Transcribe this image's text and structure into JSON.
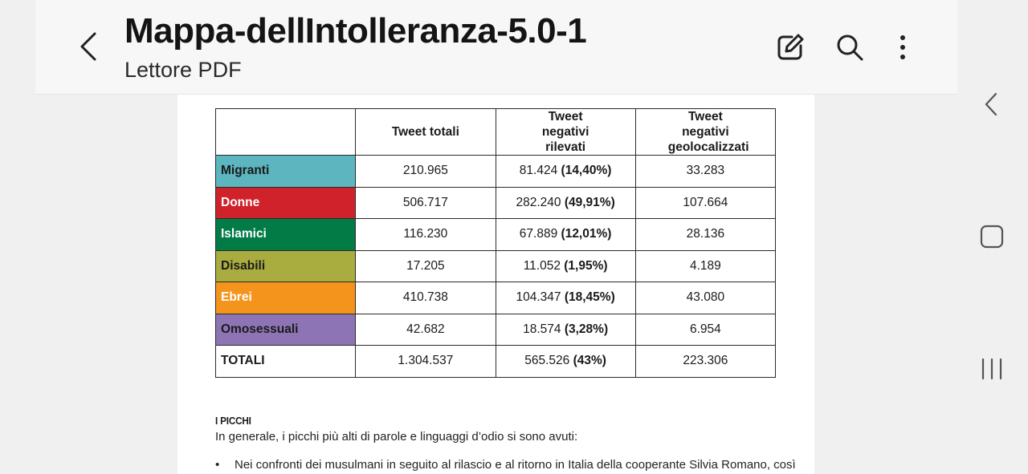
{
  "header": {
    "title": "Mappa-dellIntolleranza-5.0-1",
    "subtitle": "Lettore PDF",
    "icons": [
      "back-icon",
      "edit-icon",
      "search-icon",
      "more-icon"
    ]
  },
  "table": {
    "headers": [
      "",
      "Tweet totali",
      "Tweet negativi rilevati",
      "Tweet negativi geolocalizzati"
    ],
    "rows": [
      {
        "category": "Migranti",
        "color": "#5cb5bf",
        "text_color": "#1a1a1a",
        "total": "210.965",
        "neg": "81.424",
        "pct": "(14,40%)",
        "geo": "33.283"
      },
      {
        "category": "Donne",
        "color": "#d0222a",
        "text_color": "#ffffff",
        "total": "506.717",
        "neg": "282.240",
        "pct": "(49,91%)",
        "geo": "107.664"
      },
      {
        "category": "Islamici",
        "color": "#027b47",
        "text_color": "#ffffff",
        "total": "116.230",
        "neg": "67.889",
        "pct": "(12,01%)",
        "geo": "28.136"
      },
      {
        "category": "Disabili",
        "color": "#a9ac3e",
        "text_color": "#1a1a1a",
        "total": "17.205",
        "neg": "11.052",
        "pct": "(1,95%)",
        "geo": "4.189"
      },
      {
        "category": "Ebrei",
        "color": "#f5941c",
        "text_color": "#ffffff",
        "total": "410.738",
        "neg": "104.347",
        "pct": "(18,45%)",
        "geo": "43.080"
      },
      {
        "category": "Omosessuali",
        "color": "#8d74b4",
        "text_color": "#1a1a1a",
        "total": "42.682",
        "neg": "18.574",
        "pct": "(3,28%)",
        "geo": "6.954"
      },
      {
        "category": "TOTALI",
        "color": "#ffffff",
        "text_color": "#1a1a1a",
        "total": "1.304.537",
        "neg": "565.526",
        "pct": "(43%)",
        "geo": "223.306"
      }
    ]
  },
  "body": {
    "section_title": "I PICCHI",
    "paragraph": "In generale, i picchi più alti di parole e linguaggi d’odio si sono avuti:",
    "bullet_symbol": "•",
    "bullet": "Nei confronti dei musulmani in seguito al rilascio e al ritorno in Italia della cooperante Silvia Romano, così"
  },
  "system_nav": {
    "icons": [
      "back-nav-icon",
      "home-nav-icon",
      "recents-nav-icon"
    ]
  }
}
